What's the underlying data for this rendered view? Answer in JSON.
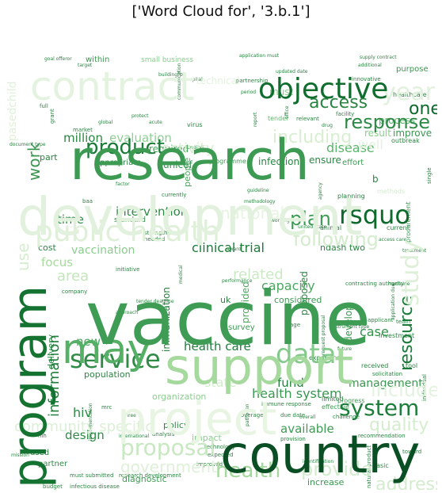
{
  "chart_data": {
    "type": "wordcloud",
    "title": "['Word Cloud for', '3.b.1']",
    "colormap": "Greens",
    "words": [
      {
        "text": "vaccine",
        "weight": 1.0
      },
      {
        "text": "research",
        "weight": 0.92
      },
      {
        "text": "development",
        "weight": 0.9
      },
      {
        "text": "country",
        "weight": 0.86
      },
      {
        "text": "support",
        "weight": 0.84
      },
      {
        "text": "program",
        "weight": 0.82
      },
      {
        "text": "project",
        "weight": 0.8
      },
      {
        "text": "contract",
        "weight": 0.74
      },
      {
        "text": "may",
        "weight": 0.72
      },
      {
        "text": "public health",
        "weight": 0.62
      },
      {
        "text": "objective",
        "weight": 0.56
      },
      {
        "text": "data",
        "weight": 0.55
      },
      {
        "text": "service",
        "weight": 0.52
      },
      {
        "text": "rsquo",
        "weight": 0.5
      },
      {
        "text": "product",
        "weight": 0.48
      },
      {
        "text": "proposal",
        "weight": 0.46
      },
      {
        "text": "study",
        "weight": 0.46
      },
      {
        "text": "access",
        "weight": 0.42
      },
      {
        "text": "including",
        "weight": 0.42
      },
      {
        "text": "year",
        "weight": 0.42
      },
      {
        "text": "health",
        "weight": 0.4
      },
      {
        "text": "system",
        "weight": 0.4
      },
      {
        "text": "plan",
        "weight": 0.38
      },
      {
        "text": "response",
        "weight": 0.36
      },
      {
        "text": "following",
        "weight": 0.36
      },
      {
        "text": "one",
        "weight": 0.34
      },
      {
        "text": "provide",
        "weight": 0.34
      },
      {
        "text": "address",
        "weight": 0.32
      },
      {
        "text": "quality",
        "weight": 0.32
      },
      {
        "text": "include",
        "weight": 0.32
      },
      {
        "text": "resource",
        "weight": 0.32
      },
      {
        "text": "government",
        "weight": 0.32
      },
      {
        "text": "work",
        "weight": 0.3
      },
      {
        "text": "information",
        "weight": 0.3
      },
      {
        "text": "community specific",
        "weight": 0.3
      },
      {
        "text": "national",
        "weight": 0.3
      },
      {
        "text": "clinical trial",
        "weight": 0.28
      },
      {
        "text": "health system",
        "weight": 0.26
      },
      {
        "text": "management",
        "weight": 0.26
      },
      {
        "text": "intervention",
        "weight": 0.26
      },
      {
        "text": "health care",
        "weight": 0.24
      },
      {
        "text": "disease",
        "weight": 0.24
      },
      {
        "text": "million",
        "weight": 0.24
      },
      {
        "text": "evaluation",
        "weight": 0.24
      },
      {
        "text": "use",
        "weight": 0.24
      },
      {
        "text": "time",
        "weight": 0.24
      },
      {
        "text": "focus",
        "weight": 0.22
      },
      {
        "text": "area",
        "weight": 0.22
      },
      {
        "text": "vaccination",
        "weight": 0.22
      },
      {
        "text": "related",
        "weight": 0.22
      },
      {
        "text": "capacity",
        "weight": 0.22
      },
      {
        "text": "available",
        "weight": 0.22
      },
      {
        "text": "design",
        "weight": 0.22
      },
      {
        "text": "hiv",
        "weight": 0.22
      },
      {
        "text": "fund",
        "weight": 0.22
      },
      {
        "text": "case",
        "weight": 0.22
      },
      {
        "text": "new",
        "weight": 0.22
      },
      {
        "text": "activity",
        "weight": 0.22
      },
      {
        "text": "well",
        "weight": 0.22
      },
      {
        "text": "state",
        "weight": 0.22
      },
      {
        "text": "immunization",
        "weight": 0.2
      },
      {
        "text": "provided",
        "weight": 0.2
      },
      {
        "text": "proposed",
        "weight": 0.2
      },
      {
        "text": "develop",
        "weight": 0.2
      },
      {
        "text": "required",
        "weight": 0.2
      },
      {
        "text": "infection",
        "weight": 0.2
      },
      {
        "text": "unicef",
        "weight": 0.2
      },
      {
        "text": "improve",
        "weight": 0.2
      },
      {
        "text": "result",
        "weight": 0.2
      },
      {
        "text": "must",
        "weight": 0.2
      },
      {
        "text": "ensure",
        "weight": 0.18
      },
      {
        "text": "process",
        "weight": 0.18
      },
      {
        "text": "diagnostic",
        "weight": 0.18
      },
      {
        "text": "increase",
        "weight": 0.18
      },
      {
        "text": "population",
        "weight": 0.18
      },
      {
        "text": "policy",
        "weight": 0.18
      },
      {
        "text": "people",
        "weight": 0.18
      },
      {
        "text": "considered",
        "weight": 0.16
      },
      {
        "text": "impact",
        "weight": 0.16
      },
      {
        "text": "organization",
        "weight": 0.16
      },
      {
        "text": "ndash two",
        "weight": 0.16
      },
      {
        "text": "uk",
        "weight": 0.16
      },
      {
        "text": "cost",
        "weight": 0.16
      },
      {
        "text": "delivery",
        "weight": 0.16
      },
      {
        "text": "part",
        "weight": 0.14
      },
      {
        "text": "appropriate",
        "weight": 0.14
      },
      {
        "text": "effort",
        "weight": 0.14
      },
      {
        "text": "survey",
        "weight": 0.14
      },
      {
        "text": "partner",
        "weight": 0.14
      },
      {
        "text": "used",
        "weight": 0.14
      },
      {
        "text": "within",
        "weight": 0.14
      },
      {
        "text": "small business",
        "weight": 0.12
      },
      {
        "text": "purpose",
        "weight": 0.12
      },
      {
        "text": "standard",
        "weight": 0.12
      },
      {
        "text": "programme",
        "weight": 0.12
      },
      {
        "text": "experience",
        "weight": 0.1
      },
      {
        "text": "investment",
        "weight": 0.1
      },
      {
        "text": "current",
        "weight": 0.12
      },
      {
        "text": "procurement",
        "weight": 0.12
      },
      {
        "text": "tool",
        "weight": 0.1
      },
      {
        "text": "received",
        "weight": 0.1
      },
      {
        "text": "technical",
        "weight": 0.12
      },
      {
        "text": "tender",
        "weight": 0.1
      },
      {
        "text": "outbreak",
        "weight": 0.1
      },
      {
        "text": "healthcare",
        "weight": 0.1
      },
      {
        "text": "planning",
        "weight": 0.1
      },
      {
        "text": "animal",
        "weight": 0.1
      },
      {
        "text": "limited",
        "weight": 0.1
      },
      {
        "text": "effective",
        "weight": 0.1
      },
      {
        "text": "progress",
        "weight": 0.1
      },
      {
        "text": "due date",
        "weight": 0.08
      },
      {
        "text": "coverage",
        "weight": 0.08
      },
      {
        "text": "challenge",
        "weight": 0.08
      },
      {
        "text": "analysis",
        "weight": 0.08
      },
      {
        "text": "budget",
        "weight": 0.08
      },
      {
        "text": "infectious disease",
        "weight": 0.08
      },
      {
        "text": "research development",
        "weight": 0.08
      },
      {
        "text": "must submitted",
        "weight": 0.08
      },
      {
        "text": "technology",
        "weight": 0.08
      },
      {
        "text": "expected",
        "weight": 0.08
      },
      {
        "text": "improved",
        "weight": 0.08
      },
      {
        "text": "basic",
        "weight": 0.08
      },
      {
        "text": "immune response",
        "weight": 0.08
      },
      {
        "text": "recommendation",
        "weight": 0.08
      },
      {
        "text": "toward",
        "weight": 0.08
      },
      {
        "text": "provision",
        "weight": 0.08
      },
      {
        "text": "partnership",
        "weight": 0.08
      },
      {
        "text": "virus",
        "weight": 0.08
      },
      {
        "text": "facility",
        "weight": 0.08
      },
      {
        "text": "relevant",
        "weight": 0.08
      },
      {
        "text": "applicant",
        "weight": 0.08
      },
      {
        "text": "individual",
        "weight": 0.08
      },
      {
        "text": "solicitation",
        "weight": 0.08
      },
      {
        "text": "natural product",
        "weight": 0.08
      },
      {
        "text": "innovative",
        "weight": 0.08
      },
      {
        "text": "full",
        "weight": 0.08
      },
      {
        "text": "grant",
        "weight": 0.08
      },
      {
        "text": "market",
        "weight": 0.08
      },
      {
        "text": "strengthen",
        "weight": 0.08
      },
      {
        "text": "needed",
        "weight": 0.08
      },
      {
        "text": "initiative",
        "weight": 0.08
      },
      {
        "text": "team",
        "weight": 0.08
      },
      {
        "text": "age",
        "weight": 0.08
      },
      {
        "text": "b",
        "weight": 0.1
      },
      {
        "text": "pasedchild",
        "weight": 0.14
      },
      {
        "text": "methods",
        "weight": 0.1
      },
      {
        "text": "company",
        "weight": 0.08
      },
      {
        "text": "contracting authority",
        "weight": 0.08
      },
      {
        "text": "instrument type",
        "weight": 0.06
      },
      {
        "text": "single",
        "weight": 0.06
      },
      {
        "text": "medicine",
        "weight": 0.06
      },
      {
        "text": "agency",
        "weight": 0.06
      },
      {
        "text": "office",
        "weight": 0.06
      },
      {
        "text": "report",
        "weight": 0.06
      },
      {
        "text": "building",
        "weight": 0.06
      },
      {
        "text": "hospital",
        "weight": 0.06
      },
      {
        "text": "period",
        "weight": 0.06
      },
      {
        "text": "factor",
        "weight": 0.06
      },
      {
        "text": "working",
        "weight": 0.06
      },
      {
        "text": "united state",
        "weight": 0.06
      },
      {
        "text": "award",
        "weight": 0.06
      },
      {
        "text": "three",
        "weight": 0.06
      },
      {
        "text": "international",
        "weight": 0.06
      },
      {
        "text": "pathogen",
        "weight": 0.06
      },
      {
        "text": "future",
        "weight": 0.06
      },
      {
        "text": "request proposal",
        "weight": 0.06
      },
      {
        "text": "identification",
        "weight": 0.06
      },
      {
        "text": "application due",
        "weight": 0.06
      },
      {
        "text": "performance",
        "weight": 0.06
      },
      {
        "text": "tender deadline",
        "weight": 0.06
      },
      {
        "text": "foa",
        "weight": 0.06
      },
      {
        "text": "baa",
        "weight": 0.06
      },
      {
        "text": "mrc",
        "weight": 0.06
      },
      {
        "text": "nih",
        "weight": 0.06
      },
      {
        "text": "currently",
        "weight": 0.06
      },
      {
        "text": "medical",
        "weight": 0.06
      },
      {
        "text": "implementation",
        "weight": 0.06
      },
      {
        "text": "target",
        "weight": 0.06
      },
      {
        "text": "supply contract",
        "weight": 0.06
      },
      {
        "text": "updated date",
        "weight": 0.06
      },
      {
        "text": "application must",
        "weight": 0.06
      },
      {
        "text": "document type",
        "weight": 0.06
      },
      {
        "text": "goal offeror",
        "weight": 0.06
      },
      {
        "text": "overall",
        "weight": 0.06
      },
      {
        "text": "communication",
        "weight": 0.06
      },
      {
        "text": "acute",
        "weight": 0.06
      },
      {
        "text": "global",
        "weight": 0.06
      },
      {
        "text": "drug",
        "weight": 0.06
      },
      {
        "text": "protect",
        "weight": 0.06
      },
      {
        "text": "methodology",
        "weight": 0.06
      },
      {
        "text": "guideline",
        "weight": 0.06
      },
      {
        "text": "mission",
        "weight": 0.06
      },
      {
        "text": "treatment",
        "weight": 0.06
      },
      {
        "text": "access care",
        "weight": 0.06
      },
      {
        "text": "approach",
        "weight": 0.06
      },
      {
        "text": "additional",
        "weight": 0.06
      },
      {
        "text": "funding",
        "weight": 0.06
      },
      {
        "text": "innovation",
        "weight": 0.06
      }
    ]
  }
}
